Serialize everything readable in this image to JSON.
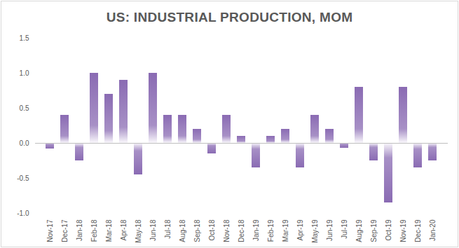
{
  "chart_data": {
    "type": "bar",
    "title": "US: INDUSTRIAL PRODUCTION, MOM",
    "categories": [
      "Nov-17",
      "Dec-17",
      "Jan-18",
      "Feb-18",
      "Mar-18",
      "Apr-18",
      "May-18",
      "Jun-18",
      "Jul-18",
      "Aug-18",
      "Sep-18",
      "Oct-18",
      "Nov-18",
      "Dec-18",
      "Jan-19",
      "Feb-19",
      "Mar-19",
      "Apr-19",
      "May-19",
      "Jun-19",
      "Jul-19",
      "Aug-19",
      "Sep-19",
      "Oct-19",
      "Nov-19",
      "Dec-19",
      "Jan-20"
    ],
    "values": [
      -0.08,
      0.4,
      -0.25,
      1.0,
      0.7,
      0.9,
      -0.45,
      1.0,
      0.4,
      0.4,
      0.2,
      -0.15,
      0.4,
      0.1,
      -0.35,
      0.1,
      0.2,
      -0.35,
      0.4,
      0.2,
      -0.07,
      0.8,
      -0.25,
      -0.85,
      0.8,
      -0.35,
      -0.25
    ],
    "color": "#8a6bb3",
    "ylim": [
      -1.0,
      1.5
    ],
    "yticks": [
      {
        "value": -1.0,
        "label": "-1.0"
      },
      -0.5,
      {
        "value": 0.0,
        "label": "0.0"
      },
      0.5,
      {
        "value": 1.0,
        "label": "1.0"
      },
      1.5
    ],
    "grid": false
  }
}
